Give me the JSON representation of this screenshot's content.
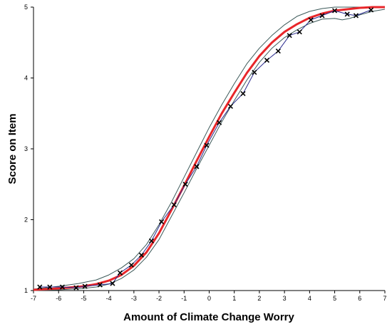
{
  "chart_data": {
    "type": "line",
    "title": "",
    "xlabel": "Amount of Climate Change Worry",
    "ylabel": "Score on Item",
    "xlim": [
      -7,
      7
    ],
    "ylim": [
      1,
      5
    ],
    "xticks": [
      "-7",
      "-6",
      "-5",
      "-4",
      "-3",
      "-2",
      "-1",
      "0",
      "1",
      "2",
      "3",
      "4",
      "5",
      "6",
      "7"
    ],
    "yticks": [
      "1",
      "2",
      "3",
      "4",
      "5"
    ],
    "grid": false,
    "legend": "none",
    "series": [
      {
        "role": "upper-confidence-band",
        "style": "line",
        "color": "#3d5a5a",
        "x": [
          -7,
          -6,
          -5.2,
          -4.5,
          -4,
          -3.5,
          -3,
          -2.5,
          -2,
          -1.5,
          -1,
          -0.5,
          0,
          0.5,
          1,
          1.5,
          2,
          2.5,
          3,
          3.5,
          4,
          4.5,
          5,
          5.5,
          6,
          6.5,
          7
        ],
        "y": [
          1.02,
          1.06,
          1.1,
          1.15,
          1.22,
          1.32,
          1.45,
          1.65,
          1.93,
          2.25,
          2.6,
          2.95,
          3.3,
          3.62,
          3.92,
          4.2,
          4.42,
          4.6,
          4.75,
          4.87,
          4.94,
          4.98,
          5.0,
          5.0,
          5.0,
          5.0,
          5.0
        ]
      },
      {
        "role": "lower-confidence-band",
        "style": "line",
        "color": "#3d5a5a",
        "x": [
          -7,
          -6,
          -5,
          -4.5,
          -4,
          -3.5,
          -3,
          -2.5,
          -2,
          -1.5,
          -1,
          -0.5,
          0,
          0.5,
          1,
          1.5,
          2,
          2.5,
          3,
          3.5,
          4,
          4.5,
          5,
          5.3,
          5.6,
          6,
          6.5,
          7
        ],
        "y": [
          1.0,
          1.01,
          1.03,
          1.05,
          1.09,
          1.17,
          1.29,
          1.47,
          1.72,
          2.05,
          2.38,
          2.72,
          3.05,
          3.38,
          3.68,
          3.97,
          4.22,
          4.42,
          4.57,
          4.68,
          4.77,
          4.83,
          4.84,
          4.82,
          4.84,
          4.89,
          4.94,
          4.97
        ]
      },
      {
        "role": "expected-score-curve",
        "style": "thick-line",
        "color": "#e8262a",
        "x": [
          -7,
          -6,
          -5,
          -4.5,
          -4,
          -3.5,
          -3,
          -2.5,
          -2,
          -1.5,
          -1,
          -0.5,
          0,
          0.5,
          1,
          1.5,
          2,
          2.5,
          3,
          3.5,
          4,
          4.5,
          5,
          5.5,
          6,
          6.5,
          7
        ],
        "y": [
          1.01,
          1.03,
          1.06,
          1.09,
          1.14,
          1.22,
          1.35,
          1.54,
          1.81,
          2.14,
          2.48,
          2.83,
          3.17,
          3.5,
          3.79,
          4.07,
          4.31,
          4.5,
          4.65,
          4.76,
          4.85,
          4.91,
          4.95,
          4.97,
          4.99,
          5.0,
          5.0
        ]
      },
      {
        "role": "observed-scores",
        "style": "line-markers",
        "color": "#2b2b8f",
        "marker": "x",
        "x": [
          -6.75,
          -6.35,
          -5.85,
          -5.3,
          -4.95,
          -4.35,
          -3.85,
          -3.55,
          -3.1,
          -2.7,
          -2.3,
          -1.9,
          -1.4,
          -0.95,
          -0.5,
          -0.1,
          0.4,
          0.85,
          1.35,
          1.8,
          2.3,
          2.75,
          3.2,
          3.6,
          4.05,
          4.5,
          5.0,
          5.5,
          5.85,
          6.45
        ],
        "y": [
          1.05,
          1.05,
          1.05,
          1.04,
          1.06,
          1.08,
          1.1,
          1.25,
          1.36,
          1.5,
          1.7,
          1.97,
          2.21,
          2.5,
          2.75,
          3.05,
          3.37,
          3.6,
          3.78,
          4.08,
          4.25,
          4.38,
          4.6,
          4.65,
          4.82,
          4.88,
          4.95,
          4.9,
          4.88,
          4.96
        ]
      }
    ]
  }
}
